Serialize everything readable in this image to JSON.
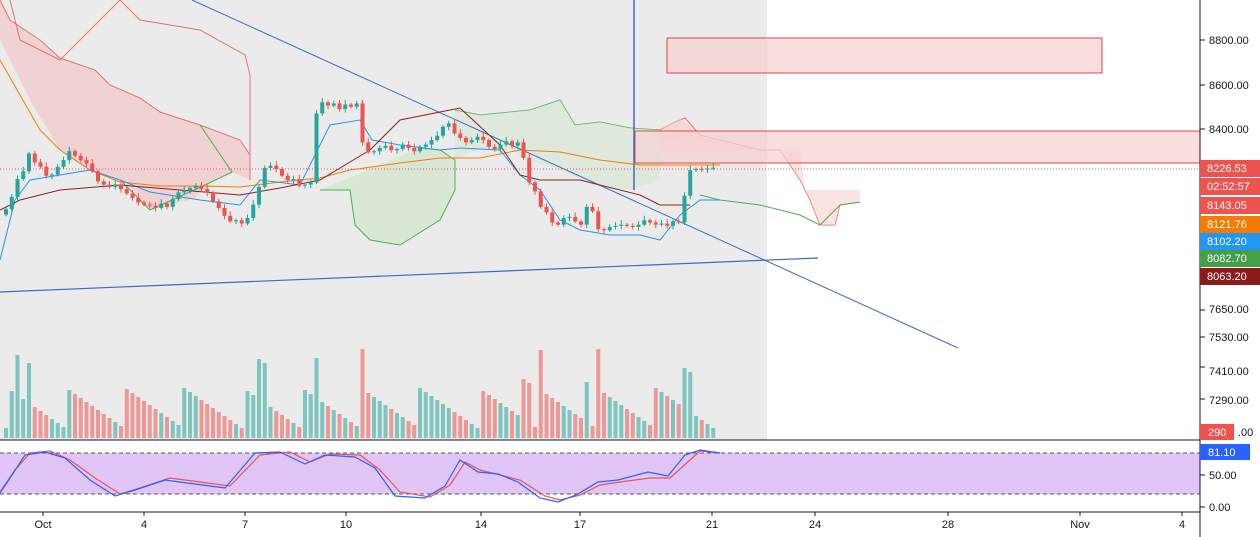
{
  "chart_data": {
    "type": "candlestick",
    "title": "",
    "colors": {
      "up": "#26a69a",
      "down": "#ef5350",
      "down_dark": "#b22833",
      "trendline": "#3b6cc4",
      "orange_ma": "#f57c00",
      "blue_line": "#2196f3",
      "cloud_green": "#4caf50",
      "cloud_red": "#e57373",
      "zone_fill": "#f8d0d0",
      "zone_border": "#d84a4a",
      "stoch_band": "#e1c5f7",
      "stoch_k": "#2962ff",
      "stoch_d": "#ef5350"
    },
    "price_axis": {
      "ticks": [
        "8800.00",
        "8600.00",
        "8400.00",
        "7650.00",
        "7530.00",
        "7410.00",
        "7290.00"
      ]
    },
    "price_tags": [
      {
        "label": "8226.53",
        "color": "#ef5350"
      },
      {
        "label": "02:52:57",
        "color": "#ef5350"
      },
      {
        "label": "8143.05",
        "color": "#ef5350"
      },
      {
        "label": "8121.76",
        "color": "#f57c00"
      },
      {
        "label": "8102.20",
        "color": "#2196f3"
      },
      {
        "label": "8082.70",
        "color": "#43a047"
      },
      {
        "label": "8063.20",
        "color": "#8b1a1a"
      }
    ],
    "volume_tag": {
      "label": "290",
      "color": "#ef5350"
    },
    "volume_partial_tick": ".00",
    "stoch_axis": {
      "ticks": [
        "50.00",
        "0.00"
      ],
      "value_tag": {
        "label": "81.10",
        "color": "#2962ff"
      }
    },
    "x_ticks": [
      "Oct",
      "4",
      "7",
      "10",
      "14",
      "17",
      "21",
      "24",
      "28",
      "Nov",
      "4"
    ],
    "closes": [
      8040,
      8095,
      8175,
      8210,
      8290,
      8250,
      8230,
      8190,
      8195,
      8230,
      8260,
      8300,
      8280,
      8260,
      8245,
      8210,
      8165,
      8150,
      8140,
      8150,
      8130,
      8110,
      8090,
      8070,
      8060,
      8055,
      8045,
      8065,
      8050,
      8085,
      8115,
      8125,
      8135,
      8145,
      8130,
      8115,
      8075,
      8045,
      8010,
      7985,
      7990,
      7975,
      8000,
      8060,
      8140,
      8225,
      8235,
      8220,
      8190,
      8170,
      8175,
      8145,
      8150,
      8160,
      8470,
      8520,
      8505,
      8515,
      8490,
      8510,
      8500,
      8515,
      8340,
      8295,
      8300,
      8315,
      8325,
      8305,
      8310,
      8330,
      8315,
      8300,
      8320,
      8330,
      8350,
      8370,
      8410,
      8425,
      8380,
      8360,
      8340,
      8350,
      8365,
      8350,
      8320,
      8310,
      8330,
      8345,
      8325,
      8340,
      8270,
      8160,
      8120,
      8050,
      8025,
      7980,
      7970,
      8000,
      8005,
      7985,
      7970,
      8050,
      8030,
      7950,
      7945,
      7960,
      7965,
      7970,
      7965,
      7960,
      7970,
      7990,
      7980,
      7970,
      7975,
      7965,
      7985,
      7980,
      8100,
      8215,
      8220,
      8218,
      8222,
      8226
    ]
  }
}
